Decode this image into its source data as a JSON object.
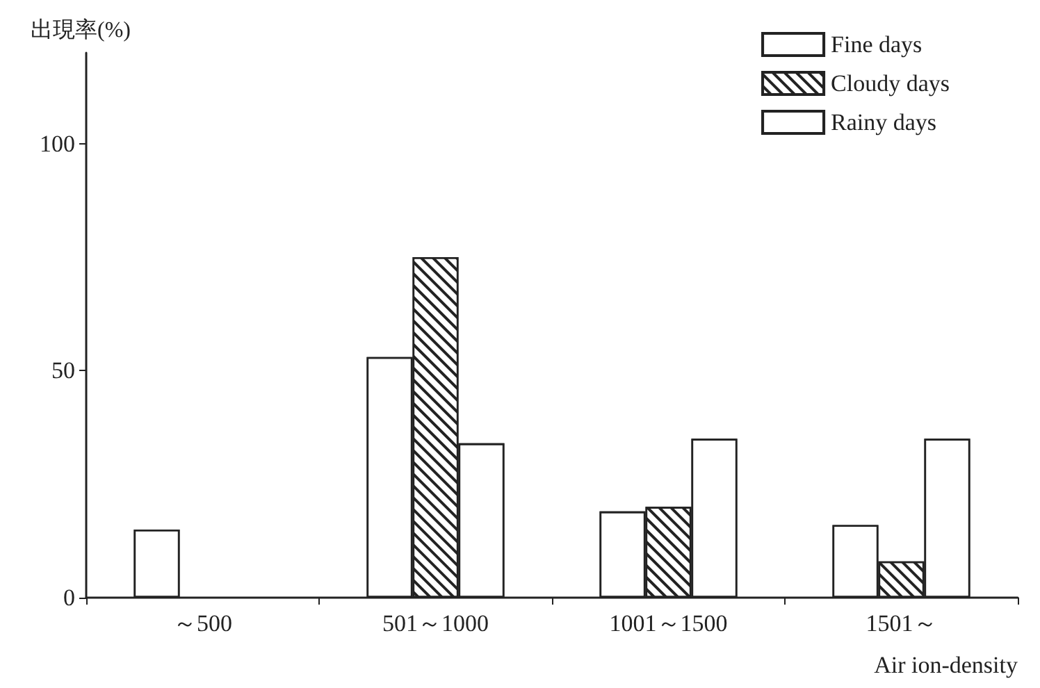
{
  "chart_data": {
    "type": "bar",
    "categories": [
      "～500",
      "501～1000",
      "1001～1500",
      "1501～"
    ],
    "series": [
      {
        "name": "Fine days",
        "color": "#ffffff",
        "values": [
          15,
          53,
          19,
          16
        ]
      },
      {
        "name": "Cloudy days",
        "color": "#ffffff",
        "values": [
          null,
          75,
          20,
          8
        ]
      },
      {
        "name": "Rainy days",
        "color": "#ffffff",
        "values": [
          null,
          34,
          35,
          35
        ]
      }
    ],
    "ylabel": "出現率(%)",
    "xlabel": "Air ion-density",
    "ylim": [
      0,
      120
    ],
    "yticks": [
      0,
      50,
      100
    ],
    "grid": false,
    "legend": "top right"
  }
}
